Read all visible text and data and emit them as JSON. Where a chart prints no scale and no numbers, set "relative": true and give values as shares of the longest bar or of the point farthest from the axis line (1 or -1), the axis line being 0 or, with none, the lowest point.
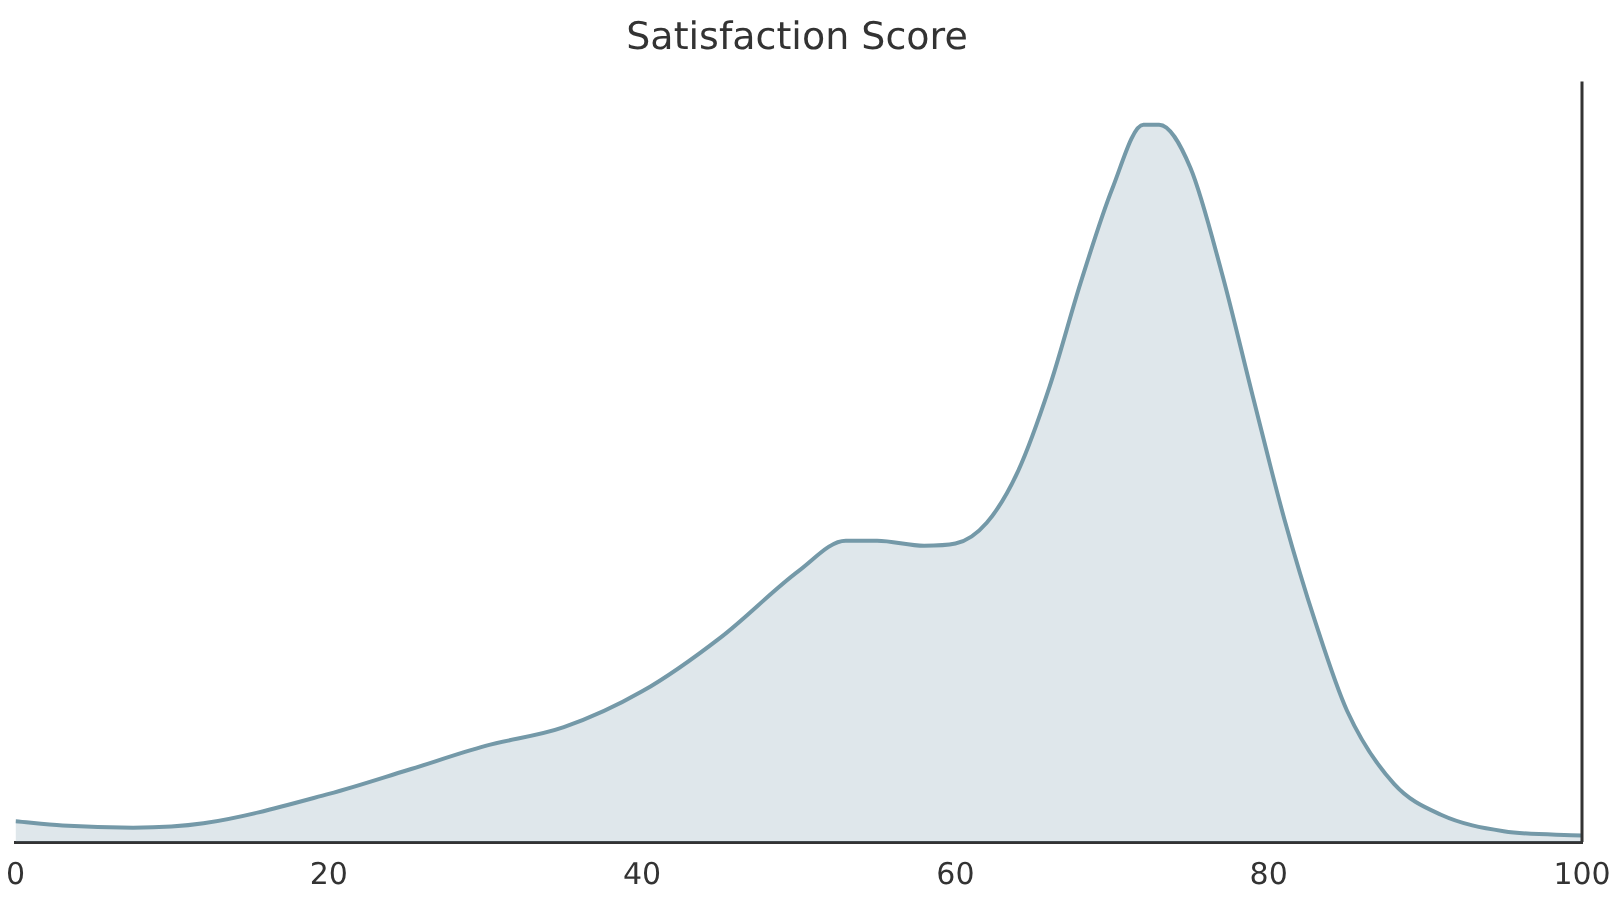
{
  "chart_data": {
    "type": "area",
    "title": "Satisfaction Score",
    "relative": true,
    "xlim": [
      0,
      100
    ],
    "xticks": [
      0,
      20,
      40,
      60,
      80,
      100
    ],
    "grid": false,
    "legend": false,
    "x": [
      0,
      3,
      7.5,
      12,
      20,
      25,
      30,
      35,
      40,
      45,
      50,
      53,
      55,
      58,
      60,
      62,
      64,
      66,
      68,
      70,
      72,
      73,
      75,
      77,
      79,
      81,
      83,
      85,
      88,
      91,
      95,
      100
    ],
    "series": [
      {
        "color": "#7499a8",
        "values": [
          0.029,
          0.023,
          0.02,
          0.026,
          0.067,
          0.1,
          0.134,
          0.16,
          0.21,
          0.285,
          0.378,
          0.42,
          0.42,
          0.413,
          0.416,
          0.445,
          0.517,
          0.634,
          0.78,
          0.91,
          1.0,
          1.0,
          0.94,
          0.794,
          0.62,
          0.45,
          0.305,
          0.183,
          0.081,
          0.038,
          0.015,
          0.009
        ]
      }
    ]
  }
}
